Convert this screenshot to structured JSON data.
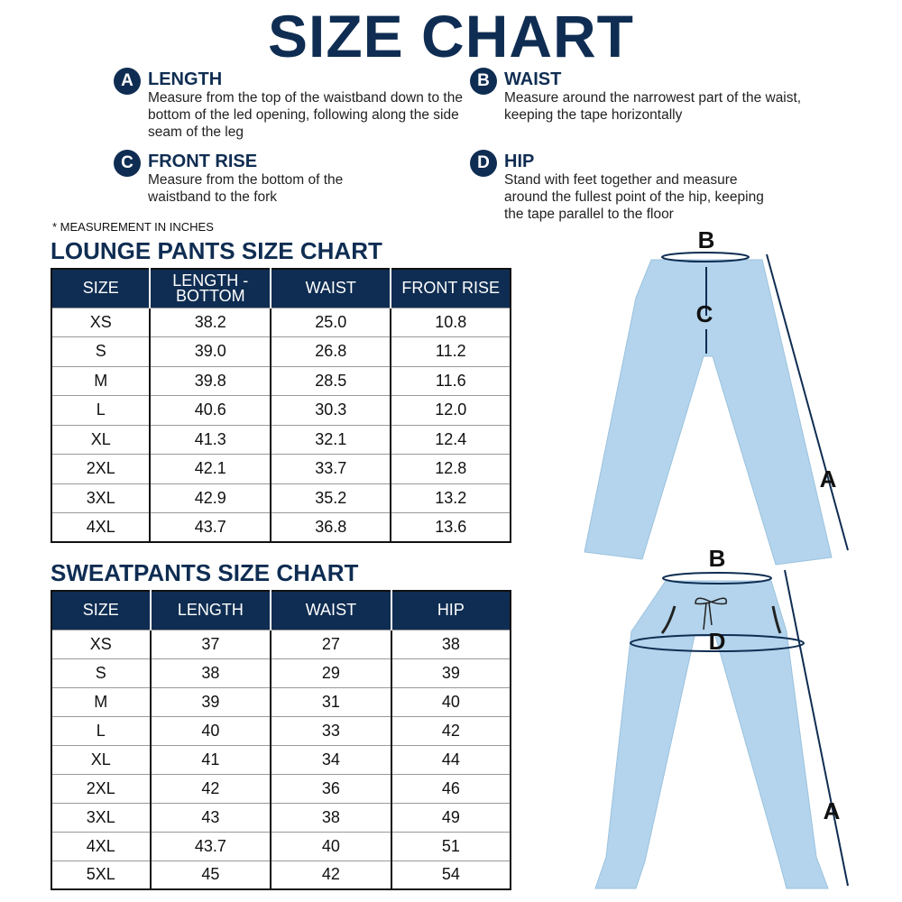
{
  "title": "SIZE CHART",
  "measurements": [
    {
      "letter": "A",
      "name": "LENGTH",
      "desc": "Measure from the top of the waistband down to the bottom of the led opening, following along the side seam of the leg"
    },
    {
      "letter": "B",
      "name": "WAIST",
      "desc": "Measure around the narrowest part of the waist, keeping the tape horizontally"
    },
    {
      "letter": "C",
      "name": "FRONT RISE",
      "desc": "Measure from the bottom of the waistband to the fork"
    },
    {
      "letter": "D",
      "name": "HIP",
      "desc": "Stand with feet together and measure around the fullest point of the hip, keeping the tape parallel to the floor"
    }
  ],
  "note": "* MEASUREMENT IN INCHES",
  "lounge": {
    "title": "LOUNGE PANTS SIZE CHART",
    "headers": [
      "SIZE",
      "LENGTH - BOTTOM",
      "WAIST",
      "FRONT RISE"
    ],
    "rows": [
      [
        "XS",
        "38.2",
        "25.0",
        "10.8"
      ],
      [
        "S",
        "39.0",
        "26.8",
        "11.2"
      ],
      [
        "M",
        "39.8",
        "28.5",
        "11.6"
      ],
      [
        "L",
        "40.6",
        "30.3",
        "12.0"
      ],
      [
        "XL",
        "41.3",
        "32.1",
        "12.4"
      ],
      [
        "2XL",
        "42.1",
        "33.7",
        "12.8"
      ],
      [
        "3XL",
        "42.9",
        "35.2",
        "13.2"
      ],
      [
        "4XL",
        "43.7",
        "36.8",
        "13.6"
      ]
    ]
  },
  "sweat": {
    "title": "SWEATPANTS SIZE CHART",
    "headers": [
      "SIZE",
      "LENGTH",
      "WAIST",
      "HIP"
    ],
    "rows": [
      [
        "XS",
        "37",
        "27",
        "38"
      ],
      [
        "S",
        "38",
        "29",
        "39"
      ],
      [
        "M",
        "39",
        "31",
        "40"
      ],
      [
        "L",
        "40",
        "33",
        "42"
      ],
      [
        "XL",
        "41",
        "34",
        "44"
      ],
      [
        "2XL",
        "42",
        "36",
        "46"
      ],
      [
        "3XL",
        "43",
        "38",
        "49"
      ],
      [
        "4XL",
        "43.7",
        "40",
        "51"
      ],
      [
        "5XL",
        "45",
        "42",
        "54"
      ]
    ]
  },
  "diagram_labels": {
    "lounge": [
      "B",
      "C",
      "A"
    ],
    "sweat": [
      "B",
      "D",
      "A"
    ]
  },
  "colors": {
    "navy": "#0f2d52",
    "pants": "#b3d4ec"
  }
}
